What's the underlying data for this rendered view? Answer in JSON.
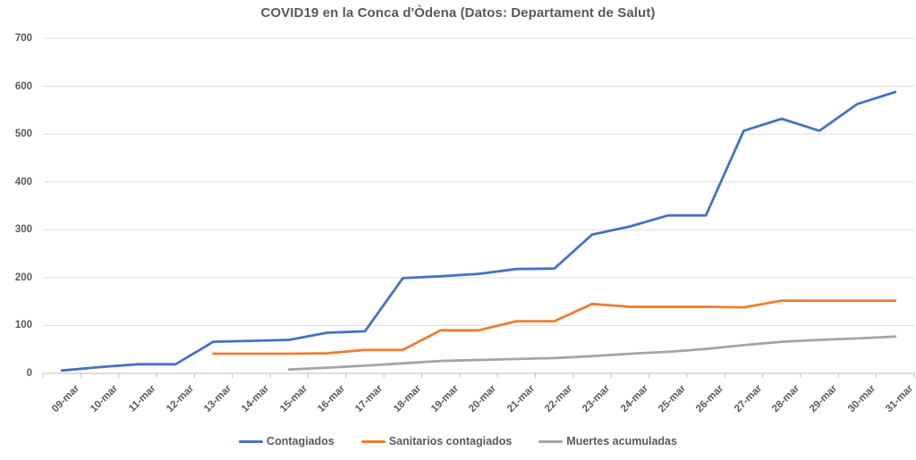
{
  "chart_data": {
    "type": "line",
    "title": "COVID19 en la Conca d'Òdena (Datos: Departament de Salut)",
    "categories": [
      "09-mar",
      "10-mar",
      "11-mar",
      "12-mar",
      "13-mar",
      "14-mar",
      "15-mar",
      "16-mar",
      "17-mar",
      "18-mar",
      "19-mar",
      "20-mar",
      "21-mar",
      "22-mar",
      "23-mar",
      "24-mar",
      "25-mar",
      "26-mar",
      "27-mar",
      "28-mar",
      "29-mar",
      "30-mar",
      "31-mar"
    ],
    "series": [
      {
        "name": "Contagiados",
        "color": "#4472C4",
        "values": [
          6,
          13,
          19,
          19,
          66,
          68,
          70,
          85,
          88,
          199,
          203,
          208,
          218,
          219,
          290,
          307,
          330,
          330,
          507,
          532,
          507,
          563,
          588
        ]
      },
      {
        "name": "Sanitarios contagiados",
        "color": "#ED7D31",
        "values": [
          null,
          null,
          null,
          null,
          41,
          41,
          41,
          42,
          49,
          49,
          90,
          90,
          109,
          109,
          145,
          139,
          139,
          139,
          138,
          152,
          152,
          152,
          152
        ]
      },
      {
        "name": "Muertes acumuladas",
        "color": "#A5A5A5",
        "values": [
          null,
          null,
          null,
          null,
          null,
          null,
          8,
          12,
          16,
          21,
          26,
          28,
          30,
          32,
          36,
          41,
          45,
          51,
          59,
          66,
          70,
          73,
          77
        ]
      }
    ],
    "xlabel": "",
    "ylabel": "",
    "ylim": [
      0,
      700
    ],
    "yticks": [
      0,
      100,
      200,
      300,
      400,
      500,
      600,
      700
    ],
    "grid": true,
    "legend_position": "bottom"
  },
  "colors": {
    "background": "#FFFFFF",
    "gridline": "#DCDCDC",
    "axis": "#BFBFBF",
    "text": "#595959"
  }
}
